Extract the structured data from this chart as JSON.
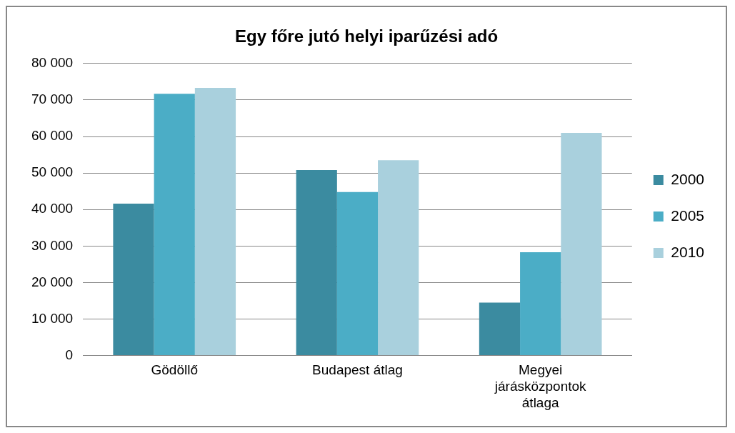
{
  "chart_data": {
    "type": "bar",
    "title": "Egy főre jutó helyi iparűzési adó",
    "categories": [
      "Gödöllő",
      "Budapest átlag",
      "Megyei járásközpontok átlaga"
    ],
    "series": [
      {
        "name": "2000",
        "color": "#3b8ba0",
        "values": [
          41600,
          50800,
          14500
        ]
      },
      {
        "name": "2005",
        "color": "#4badc6",
        "values": [
          71700,
          44800,
          28300
        ]
      },
      {
        "name": "2010",
        "color": "#a9d0dd",
        "values": [
          73300,
          53500,
          61000
        ]
      }
    ],
    "ylim": [
      0,
      80000
    ],
    "yticks": [
      0,
      {
        "value": 10000,
        "label": "10 000"
      },
      {
        "value": 20000,
        "label": "20 000"
      },
      {
        "value": 30000,
        "label": "30 000"
      },
      {
        "value": 40000,
        "label": "40 000"
      },
      {
        "value": 50000,
        "label": "50 000"
      },
      {
        "value": 60000,
        "label": "60 000"
      },
      {
        "value": 70000,
        "label": "70 000"
      },
      {
        "value": 80000,
        "label": "80 000"
      }
    ],
    "grid": "y",
    "legend": "right"
  }
}
